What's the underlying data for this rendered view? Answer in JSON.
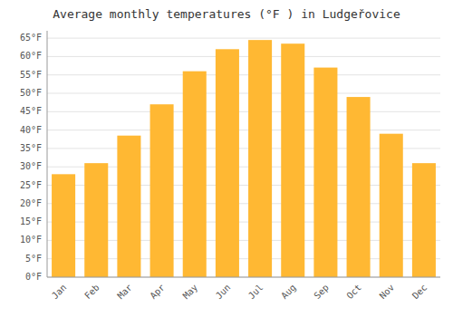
{
  "chart_data": {
    "type": "bar",
    "title": "Average monthly temperatures (°F ) in Ludgeřovice",
    "categories": [
      "Jan",
      "Feb",
      "Mar",
      "Apr",
      "May",
      "Jun",
      "Jul",
      "Aug",
      "Sep",
      "Oct",
      "Nov",
      "Dec"
    ],
    "values": [
      28.0,
      31.0,
      38.5,
      47.0,
      56.0,
      62.0,
      64.5,
      63.5,
      57.0,
      49.0,
      39.0,
      31.0
    ],
    "color": "#FFB833",
    "ylim": [
      0,
      67
    ],
    "yticks": [
      {
        "value": 0,
        "label": "0°F"
      },
      {
        "value": 5,
        "label": "5°F"
      },
      {
        "value": 10,
        "label": "10°F"
      },
      {
        "value": 15,
        "label": "15°F"
      },
      {
        "value": 20,
        "label": "20°F"
      },
      {
        "value": 25,
        "label": "25°F"
      },
      {
        "value": 30,
        "label": "30°F"
      },
      {
        "value": 35,
        "label": "35°F"
      },
      {
        "value": 40,
        "label": "40°F"
      },
      {
        "value": 45,
        "label": "45°F"
      },
      {
        "value": 50,
        "label": "50°F"
      },
      {
        "value": 55,
        "label": "55°F"
      },
      {
        "value": 60,
        "label": "60°F"
      },
      {
        "value": 65,
        "label": "65°F"
      }
    ],
    "grid": true
  }
}
